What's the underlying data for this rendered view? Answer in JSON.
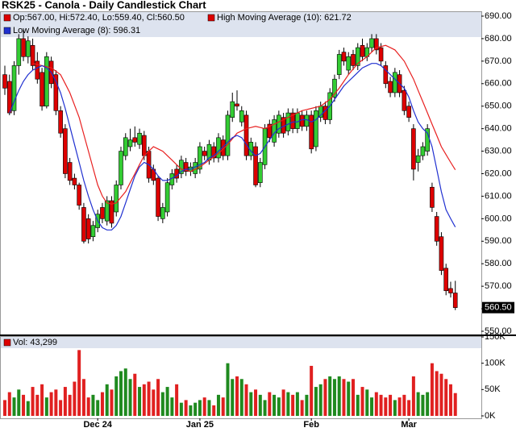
{
  "chart_data": {
    "type": "candlestick",
    "title": "RSK25 - Canola - Daily Candlestick Chart",
    "info": "Op:567.00, Hi:572.40, Lo:559.40, Cl:560.50",
    "last_price_label": "560.50",
    "up_color": "#33cc33",
    "down_color": "#dd0000",
    "categories": [
      null,
      null,
      null,
      null,
      null,
      null,
      null,
      null,
      null,
      null,
      null,
      null,
      null,
      null,
      null,
      null,
      null,
      null,
      null,
      null,
      "Dec 24",
      null,
      null,
      null,
      null,
      null,
      null,
      null,
      null,
      null,
      null,
      null,
      null,
      null,
      null,
      null,
      null,
      null,
      null,
      null,
      null,
      null,
      "Jan 25",
      null,
      null,
      null,
      null,
      null,
      null,
      null,
      null,
      null,
      null,
      null,
      null,
      null,
      null,
      null,
      null,
      null,
      null,
      null,
      null,
      null,
      null,
      null,
      "Feb",
      null,
      null,
      null,
      null,
      null,
      null,
      null,
      null,
      null,
      null,
      null,
      null,
      null,
      null,
      null,
      null,
      null,
      null,
      null,
      null,
      "Mar",
      null,
      null,
      null,
      null,
      null,
      null,
      null,
      null,
      null,
      null
    ],
    "open": [
      664,
      661,
      648,
      668,
      680,
      672,
      677,
      670,
      665,
      650,
      670,
      664,
      648,
      640,
      625,
      618,
      615,
      605,
      600,
      592,
      596,
      605,
      599,
      608,
      603,
      615,
      628,
      632,
      636,
      633,
      637,
      630,
      622,
      618,
      600,
      603,
      615,
      622,
      620,
      625,
      621,
      620,
      622,
      630,
      626,
      632,
      627,
      635,
      628,
      645,
      651,
      643,
      646,
      628,
      632,
      616,
      624,
      642,
      634,
      638,
      645,
      639,
      647,
      640,
      646,
      641,
      646,
      632,
      645,
      650,
      644,
      654,
      664,
      674,
      666,
      673,
      668,
      677,
      672,
      676,
      680,
      676,
      668,
      661,
      656,
      664,
      657,
      650,
      640,
      625,
      628,
      630,
      614,
      601,
      592,
      578,
      569,
      567
    ],
    "high": [
      668,
      664,
      670,
      682,
      684,
      681,
      680,
      674,
      667,
      674,
      672,
      666,
      650,
      642,
      627,
      620,
      616,
      607,
      602,
      599,
      604,
      607,
      610,
      610,
      617,
      632,
      638,
      640,
      641,
      640,
      639,
      632,
      624,
      619,
      607,
      618,
      622,
      624,
      628,
      627,
      625,
      627,
      634,
      632,
      635,
      634,
      638,
      637,
      648,
      656,
      657,
      650,
      648,
      636,
      634,
      627,
      642,
      644,
      646,
      648,
      647,
      649,
      649,
      649,
      648,
      648,
      648,
      650,
      652,
      652,
      658,
      664,
      675,
      676,
      674,
      675,
      678,
      680,
      678,
      682,
      682,
      678,
      670,
      663,
      667,
      666,
      659,
      652,
      642,
      631,
      634,
      642,
      616,
      603,
      594,
      580,
      572,
      572.4
    ],
    "low": [
      655,
      646,
      646,
      664,
      670,
      669,
      666,
      660,
      648,
      649,
      658,
      646,
      636,
      618,
      615,
      613,
      604,
      589,
      589,
      590,
      594,
      598,
      597,
      596,
      601,
      613,
      626,
      630,
      632,
      631,
      626,
      616,
      615,
      599,
      598,
      601,
      613,
      616,
      618,
      619,
      619,
      618,
      620,
      626,
      624,
      625,
      625,
      626,
      626,
      643,
      648,
      641,
      626,
      626,
      614,
      614,
      622,
      634,
      632,
      636,
      636,
      637,
      638,
      638,
      639,
      639,
      629,
      630,
      643,
      642,
      642,
      652,
      662,
      668,
      664,
      666,
      666,
      670,
      670,
      674,
      673,
      668,
      658,
      654,
      654,
      654,
      646,
      643,
      617,
      621,
      626,
      628,
      603,
      588,
      575,
      566,
      565,
      559.4
    ],
    "close": [
      658,
      647,
      668,
      680,
      672,
      679,
      668,
      662,
      650,
      672,
      660,
      648,
      638,
      620,
      617,
      615,
      606,
      590,
      591,
      597,
      602,
      600,
      608,
      598,
      615,
      630,
      636,
      635,
      634,
      638,
      628,
      618,
      617,
      601,
      605,
      616,
      620,
      618,
      626,
      621,
      623,
      625,
      632,
      628,
      633,
      627,
      636,
      628,
      646,
      652,
      650,
      648,
      628,
      634,
      615,
      625,
      640,
      636,
      644,
      646,
      638,
      647,
      640,
      647,
      641,
      646,
      631,
      648,
      650,
      644,
      656,
      662,
      673,
      670,
      672,
      668,
      676,
      672,
      676,
      680,
      675,
      670,
      660,
      656,
      665,
      656,
      648,
      645,
      622,
      628,
      632,
      640,
      605,
      590,
      577,
      568,
      567,
      560.5
    ],
    "series": [
      {
        "name": "High Moving Average (10): 621.72",
        "color": "#e82020",
        "values": [
          null,
          null,
          null,
          null,
          null,
          null,
          669,
          668.5,
          668,
          667.5,
          667,
          665.5,
          664,
          660,
          656,
          650.5,
          645,
          637.5,
          630,
          622.5,
          615,
          610,
          607,
          606.5,
          607,
          609.5,
          612,
          616,
          620,
          624,
          628,
          630,
          632,
          631,
          630,
          628,
          626,
          624,
          622,
          621.5,
          621,
          622,
          623,
          624.5,
          626,
          627.5,
          629,
          631,
          633,
          635.5,
          638,
          639,
          640,
          640.5,
          641,
          640.5,
          640,
          641,
          642,
          643,
          644,
          645,
          646,
          647,
          648,
          648.5,
          649,
          649.5,
          650,
          651.5,
          653,
          655.5,
          658,
          661,
          664,
          666.5,
          669,
          670.5,
          672,
          674,
          676,
          676.5,
          677,
          676,
          675,
          672.5,
          670,
          666,
          662,
          657,
          652,
          647,
          642,
          637,
          632,
          628.5,
          625,
          621.72
        ]
      },
      {
        "name": "Low Moving Average (8): 596.31",
        "color": "#2030d0",
        "values": [
          null,
          647,
          652,
          657,
          661,
          664,
          666,
          667,
          668,
          667,
          665,
          661,
          656,
          649,
          641,
          633,
          625,
          617,
          610,
          604,
          599,
          596,
          595,
          595,
          597,
          601,
          607,
          613,
          619,
          623,
          625,
          624,
          622,
          619,
          617,
          617,
          618,
          619,
          621,
          622,
          622,
          623,
          624,
          625,
          627,
          628,
          630,
          632,
          634,
          636,
          637,
          636,
          633,
          630,
          628,
          629,
          632,
          635,
          638,
          640,
          641,
          642,
          643,
          643,
          644,
          644,
          643,
          644,
          646,
          648,
          650,
          653,
          656,
          659,
          661,
          663,
          665,
          667,
          668,
          669,
          669,
          668,
          666,
          664,
          662,
          660,
          658,
          654,
          648,
          643,
          640,
          638,
          632,
          622,
          612,
          604,
          600,
          596.31
        ]
      }
    ],
    "ylim": [
      550,
      690
    ],
    "yticks": [
      550,
      560,
      570,
      580,
      590,
      600,
      610,
      620,
      630,
      640,
      650,
      660,
      670,
      680,
      690
    ],
    "ytick_labels": [
      "550.00",
      "560.00",
      "570.00",
      "580.00",
      "590.00",
      "600.00",
      "610.00",
      "620.00",
      "630.00",
      "640.00",
      "650.00",
      "660.00",
      "670.00",
      "680.00",
      "690.00"
    ],
    "volume": {
      "name": "Vol: 43,299",
      "up_color": "#1f8a1f",
      "down_color": "#e02020",
      "values": [
        30000,
        45000,
        35000,
        50000,
        40000,
        28000,
        55000,
        40000,
        60000,
        35000,
        45000,
        50000,
        30000,
        55000,
        40000,
        65000,
        125000,
        70000,
        35000,
        40000,
        30000,
        45000,
        60000,
        50000,
        75000,
        85000,
        90000,
        70000,
        80000,
        55000,
        60000,
        65000,
        50000,
        70000,
        45000,
        55000,
        35000,
        60000,
        25000,
        30000,
        20000,
        25000,
        30000,
        35000,
        30000,
        20000,
        40000,
        35000,
        100000,
        70000,
        75000,
        70000,
        60000,
        45000,
        50000,
        40000,
        30000,
        45000,
        40000,
        35000,
        50000,
        45000,
        40000,
        45000,
        30000,
        40000,
        95000,
        55000,
        60000,
        70000,
        75000,
        70000,
        75000,
        70000,
        65000,
        70000,
        40000,
        55000,
        50000,
        35000,
        45000,
        40000,
        35000,
        40000,
        30000,
        35000,
        40000,
        30000,
        75000,
        45000,
        40000,
        45000,
        100000,
        85000,
        80000,
        70000,
        60000,
        43299
      ],
      "ylim": [
        0,
        150000
      ],
      "yticks": [
        {
          "value": 0,
          "label": "0K"
        },
        {
          "value": 50000,
          "label": "50K"
        },
        {
          "value": 100000,
          "label": "100K"
        },
        {
          "value": 150000,
          "label": "150K"
        }
      ]
    }
  }
}
